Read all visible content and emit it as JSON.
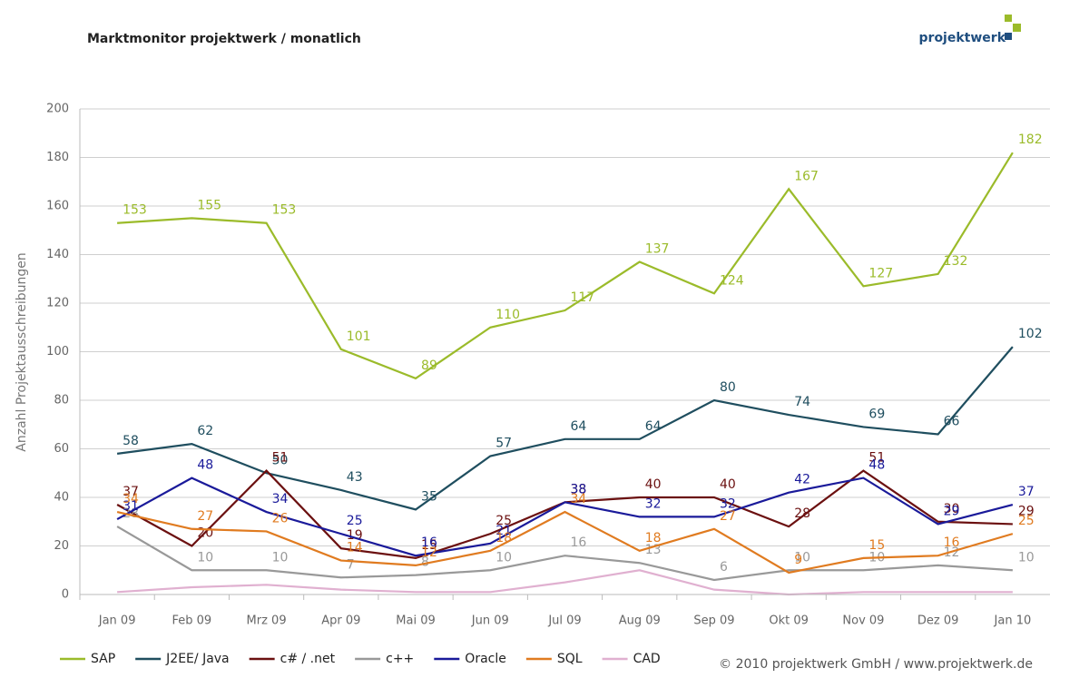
{
  "brand": "projektwerk",
  "footer": "© 2010 projektwerk GmbH / www.projektwerk.de",
  "chart_data": {
    "type": "line",
    "title": "Marktmonitor projektwerk / monatlich",
    "y_label": "Anzahl Projektausschreibungen",
    "categories": [
      "Jan 09",
      "Feb 09",
      "Mrz 09",
      "Apr 09",
      "Mai 09",
      "Jun 09",
      "Jul 09",
      "Aug 09",
      "Sep 09",
      "Okt 09",
      "Nov 09",
      "Dez 09",
      "Jan 10"
    ],
    "ylim": [
      0,
      200
    ],
    "yticks": [
      0,
      20,
      40,
      60,
      80,
      100,
      120,
      140,
      160,
      180,
      200
    ],
    "grid": true,
    "legend": "bottom",
    "series": [
      {
        "name": "SAP",
        "color": "#9bbb2a",
        "data_labels": true,
        "values": [
          153,
          155,
          153,
          101,
          89,
          110,
          117,
          137,
          124,
          167,
          127,
          132,
          182
        ]
      },
      {
        "name": "J2EE/ Java",
        "color": "#1f4e5f",
        "data_labels": true,
        "values": [
          58,
          62,
          50,
          43,
          35,
          57,
          64,
          64,
          80,
          74,
          69,
          66,
          102
        ]
      },
      {
        "name": "c# / .net",
        "color": "#6b1010",
        "data_labels": true,
        "values": [
          37,
          20,
          51,
          19,
          15,
          25,
          38,
          40,
          40,
          28,
          51,
          30,
          29
        ]
      },
      {
        "name": "c++",
        "color": "#999999",
        "data_labels": true,
        "values": [
          28,
          10,
          10,
          7,
          8,
          10,
          16,
          13,
          6,
          10,
          10,
          12,
          10
        ]
      },
      {
        "name": "Oracle",
        "color": "#1a1a9a",
        "data_labels": true,
        "values": [
          31,
          48,
          34,
          25,
          16,
          21,
          38,
          32,
          32,
          42,
          48,
          29,
          37
        ]
      },
      {
        "name": "SQL",
        "color": "#e07b20",
        "data_labels": true,
        "values": [
          34,
          27,
          26,
          14,
          12,
          18,
          34,
          18,
          27,
          9,
          15,
          16,
          25
        ]
      },
      {
        "name": "CAD",
        "color": "#e0b0d0",
        "data_labels": false,
        "values": [
          1,
          3,
          4,
          2,
          1,
          1,
          5,
          10,
          2,
          0,
          1,
          1,
          1
        ]
      }
    ]
  }
}
